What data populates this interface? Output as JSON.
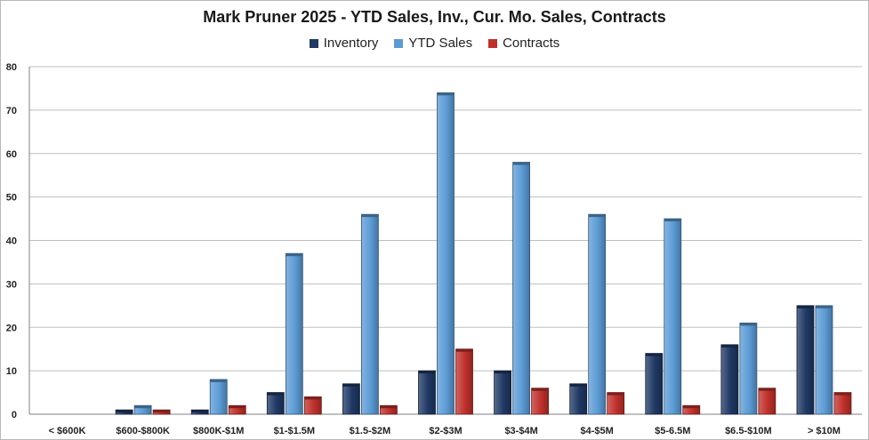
{
  "chart_data": {
    "type": "bar",
    "title": "Mark Pruner 2025 - YTD Sales, Inv., Cur. Mo. Sales, Contracts",
    "xlabel": "",
    "ylabel": "",
    "ylim": [
      0,
      80
    ],
    "yticks": [
      0,
      10,
      20,
      30,
      40,
      50,
      60,
      70,
      80
    ],
    "grid": true,
    "legend_position": "top",
    "categories": [
      "< $600K",
      "$600-$800K",
      "$800K-$1M",
      "$1-$1.5M",
      "$1.5-$2M",
      "$2-$3M",
      "$3-$4M",
      "$4-$5M",
      "$5-6.5M",
      "$6.5-$10M",
      "> $10M"
    ],
    "series": [
      {
        "name": "Inventory",
        "color": "#1f3864",
        "values": [
          0,
          1,
          1,
          5,
          7,
          10,
          10,
          7,
          14,
          16,
          25
        ]
      },
      {
        "name": "YTD Sales",
        "color": "#5b9bd5",
        "values": [
          0,
          2,
          8,
          37,
          46,
          74,
          58,
          46,
          45,
          21,
          25
        ]
      },
      {
        "name": "Contracts",
        "color": "#c0302b",
        "values": [
          0,
          1,
          2,
          4,
          2,
          15,
          6,
          5,
          2,
          6,
          5
        ]
      }
    ]
  }
}
